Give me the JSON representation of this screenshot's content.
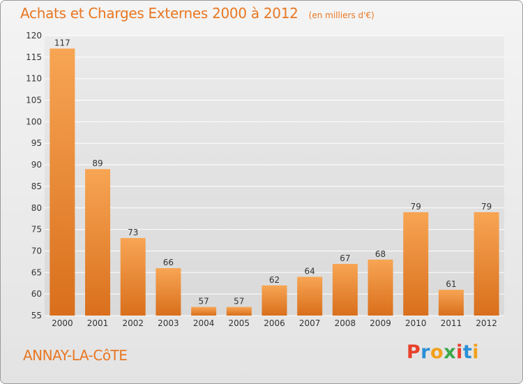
{
  "header": {
    "title": "Achats et Charges Externes 2000 à 2012",
    "subtitle": "(en milliers d'€)"
  },
  "footer": {
    "commune": "ANNAY-LA-CôTE",
    "logo_text": "Proxiti",
    "logo_colors": [
      "#e8402a",
      "#2a8fd6",
      "#f2a01b",
      "#3aa84a",
      "#e8402a",
      "#2a8fd6",
      "#f2a01b"
    ]
  },
  "chart_data": {
    "type": "bar",
    "title": "Achats et Charges Externes 2000 à 2012",
    "subtitle": "(en milliers d'€)",
    "categories": [
      "2000",
      "2001",
      "2002",
      "2003",
      "2004",
      "2005",
      "2006",
      "2007",
      "2008",
      "2009",
      "2010",
      "2011",
      "2012"
    ],
    "values": [
      117,
      89,
      73,
      66,
      57,
      57,
      62,
      64,
      67,
      68,
      79,
      61,
      79
    ],
    "ylim": [
      55,
      120
    ],
    "yticks": [
      55,
      60,
      65,
      70,
      75,
      80,
      85,
      90,
      95,
      100,
      105,
      110,
      115,
      120
    ],
    "grid": true,
    "colors": {
      "bar_top": "#f7a554",
      "bar_bottom": "#d96f1c",
      "text": "#333333",
      "grid": "#ffffff"
    }
  }
}
